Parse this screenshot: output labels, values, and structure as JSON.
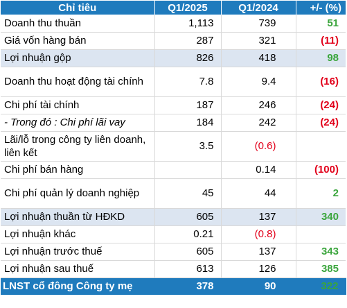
{
  "table": {
    "headers": [
      "Chỉ tiêu",
      "Q1/2025",
      "Q1/2024",
      "+/- (%)"
    ],
    "rows": [
      {
        "label": "Doanh thu thuần",
        "q1_2025": "1,113",
        "q1_2024": "739",
        "change": "51"
      },
      {
        "label": "Giá vốn hàng bán",
        "q1_2025": "287",
        "q1_2024": "321",
        "change": "(11)"
      },
      {
        "label": "Lợi nhuận gộp",
        "q1_2025": "826",
        "q1_2024": "418",
        "change": "98"
      },
      {
        "label": "Doanh thu hoạt động tài chính",
        "q1_2025": "7.8",
        "q1_2024": "9.4",
        "change": "(16)"
      },
      {
        "label": "Chi phí tài chính",
        "q1_2025": "187",
        "q1_2024": "246",
        "change": "(24)"
      },
      {
        "label": "- Trong đó : Chi phí lãi vay",
        "q1_2025": "184",
        "q1_2024": "242",
        "change": "(24)"
      },
      {
        "label": "Lãi/lỗ trong công ty liên doanh, liên kết",
        "q1_2025": "3.5",
        "q1_2024": "(0.6)",
        "change": ""
      },
      {
        "label": "Chi phí bán hàng",
        "q1_2025": "",
        "q1_2024": "0.14",
        "change": "(100)"
      },
      {
        "label": "Chi phí quản lý doanh nghiệp",
        "q1_2025": "45",
        "q1_2024": "44",
        "change": "2"
      },
      {
        "label": "Lợi nhuận thuần từ HĐKD",
        "q1_2025": "605",
        "q1_2024": "137",
        "change": "340"
      },
      {
        "label": "Lợi nhuận khác",
        "q1_2025": "0.21",
        "q1_2024": "(0.8)",
        "change": ""
      },
      {
        "label": "Lợi nhuận trước thuế",
        "q1_2025": "605",
        "q1_2024": "137",
        "change": "343"
      },
      {
        "label": "Lợi nhuận sau thuế",
        "q1_2025": "613",
        "q1_2024": "126",
        "change": "385"
      },
      {
        "label": "LNST cổ đông Công ty mẹ",
        "q1_2025": "378",
        "q1_2024": "90",
        "change": "322"
      }
    ]
  },
  "colors": {
    "header_bg": "#1f7bbd",
    "highlight_row_bg": "#dce5f1",
    "negative": "#e2001a",
    "positive": "#3aa53c"
  }
}
